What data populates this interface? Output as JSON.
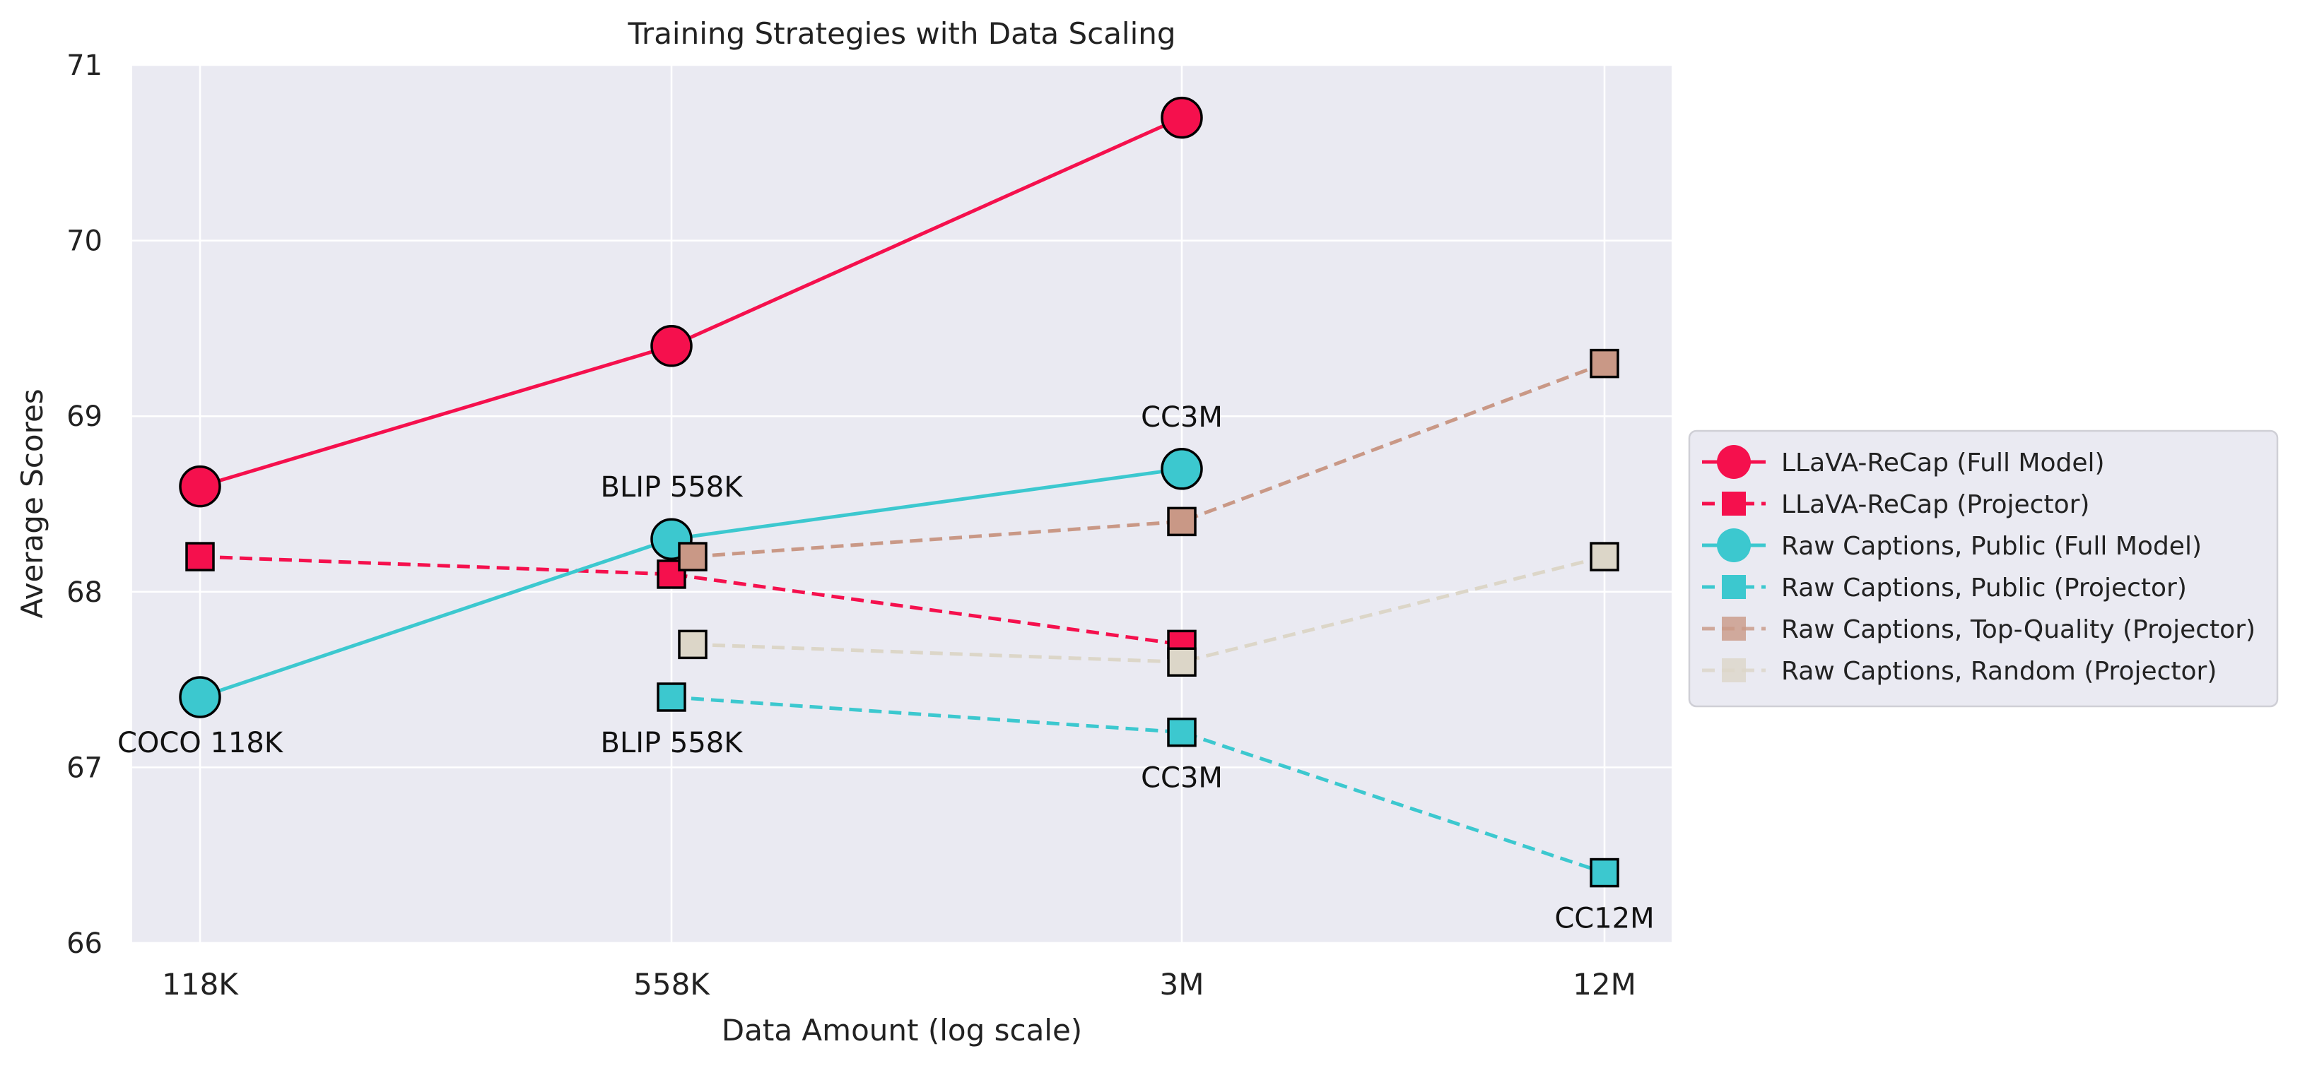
{
  "chart_data": {
    "type": "line",
    "title": "Training Strategies with Data Scaling",
    "xlabel": "Data Amount (log scale)",
    "ylabel": "Average Scores",
    "x_scale": "log",
    "x_ticks": [
      {
        "value": 118000,
        "label": "118K"
      },
      {
        "value": 558000,
        "label": "558K"
      },
      {
        "value": 3000000,
        "label": "3M"
      },
      {
        "value": 12000000,
        "label": "12M"
      }
    ],
    "ylim": [
      66,
      71
    ],
    "y_ticks": [
      66,
      67,
      68,
      69,
      70,
      71
    ],
    "grid": true,
    "legend_position": "right",
    "series": [
      {
        "name": "LLaVA-ReCap (Full Model)",
        "color": "#f5104d",
        "linestyle": "solid",
        "marker": "circle",
        "points": [
          {
            "x": 118000,
            "y": 68.6
          },
          {
            "x": 558000,
            "y": 69.4
          },
          {
            "x": 3000000,
            "y": 70.7
          }
        ]
      },
      {
        "name": "LLaVA-ReCap (Projector)",
        "color": "#f5104d",
        "linestyle": "dashed",
        "marker": "square",
        "points": [
          {
            "x": 118000,
            "y": 68.2
          },
          {
            "x": 558000,
            "y": 68.1
          },
          {
            "x": 3000000,
            "y": 67.7
          }
        ]
      },
      {
        "name": "Raw Captions, Public (Full Model)",
        "color": "#3cc8cf",
        "linestyle": "solid",
        "marker": "circle",
        "points": [
          {
            "x": 118000,
            "y": 67.4
          },
          {
            "x": 558000,
            "y": 68.3
          },
          {
            "x": 3000000,
            "y": 68.7
          }
        ]
      },
      {
        "name": "Raw Captions, Public (Projector)",
        "color": "#3cc8cf",
        "linestyle": "dashed",
        "marker": "square",
        "points": [
          {
            "x": 558000,
            "y": 67.4
          },
          {
            "x": 3000000,
            "y": 67.2
          },
          {
            "x": 12000000,
            "y": 66.4
          }
        ]
      },
      {
        "name": "Raw Captions, Top-Quality (Projector)",
        "color": "#c99886",
        "linestyle": "dashed",
        "marker": "square",
        "points": [
          {
            "x": 558000,
            "y": 68.2
          },
          {
            "x": 3000000,
            "y": 68.4
          },
          {
            "x": 12000000,
            "y": 69.3
          }
        ]
      },
      {
        "name": "Raw Captions, Random (Projector)",
        "color": "#dcd6c8",
        "linestyle": "dashed",
        "marker": "square",
        "points": [
          {
            "x": 558000,
            "y": 67.7
          },
          {
            "x": 3000000,
            "y": 67.6
          },
          {
            "x": 12000000,
            "y": 68.2
          }
        ]
      }
    ],
    "annotations": [
      {
        "text": "COCO 118K",
        "x": 118000,
        "y": 67.4,
        "position": "below"
      },
      {
        "text": "BLIP 558K",
        "x": 558000,
        "y": 68.3,
        "position": "above"
      },
      {
        "text": "CC3M",
        "x": 3000000,
        "y": 68.7,
        "position": "above"
      },
      {
        "text": "BLIP 558K",
        "x": 558000,
        "y": 67.4,
        "position": "below"
      },
      {
        "text": "CC3M",
        "x": 3000000,
        "y": 67.2,
        "position": "below"
      },
      {
        "text": "CC12M",
        "x": 12000000,
        "y": 66.4,
        "position": "below"
      }
    ],
    "background_color": "#eaeaf2"
  }
}
